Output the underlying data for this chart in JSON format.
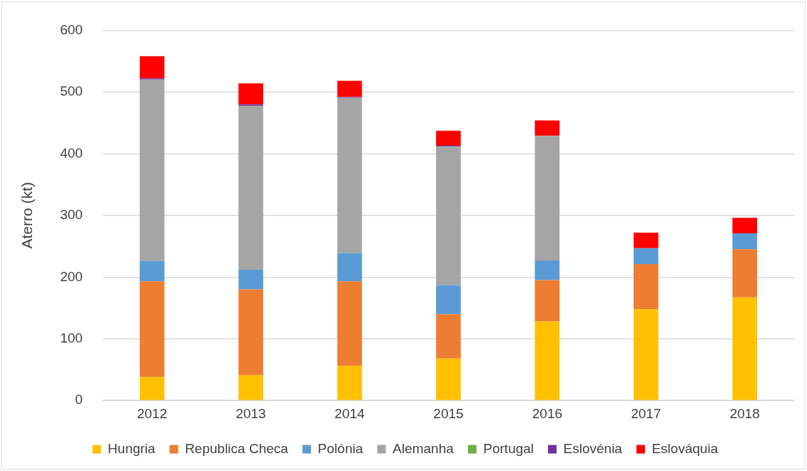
{
  "chart_data": {
    "type": "bar",
    "stacked": true,
    "ylabel": "Aterro (kt)",
    "categories": [
      "2012",
      "2013",
      "2014",
      "2015",
      "2016",
      "2017",
      "2018"
    ],
    "series": [
      {
        "name": "Hungria",
        "color": "#ffc000",
        "values": [
          38,
          41,
          56,
          68,
          128,
          148,
          167
        ]
      },
      {
        "name": "Republica Checa",
        "color": "#ed7d31",
        "values": [
          155,
          139,
          137,
          72,
          67,
          73,
          78
        ]
      },
      {
        "name": "Polónia",
        "color": "#5b9bd5",
        "values": [
          33,
          32,
          46,
          47,
          32,
          26,
          26
        ]
      },
      {
        "name": "Alemanha",
        "color": "#a5a5a5",
        "values": [
          294,
          266,
          252,
          225,
          202,
          0,
          0
        ]
      },
      {
        "name": "Portugal",
        "color": "#70ad47",
        "values": [
          0,
          0,
          0,
          0,
          0,
          0,
          0
        ]
      },
      {
        "name": "Eslovénia",
        "color": "#7030a0",
        "values": [
          2,
          2,
          1,
          1,
          0,
          0,
          0
        ]
      },
      {
        "name": "Eslováquia",
        "color": "#ff0000",
        "values": [
          36,
          34,
          26,
          24,
          25,
          25,
          25
        ]
      }
    ],
    "ylim": [
      0,
      600
    ],
    "yticks": [
      0,
      100,
      200,
      300,
      400,
      500,
      600
    ],
    "grid": "y",
    "legend": "bottom"
  }
}
